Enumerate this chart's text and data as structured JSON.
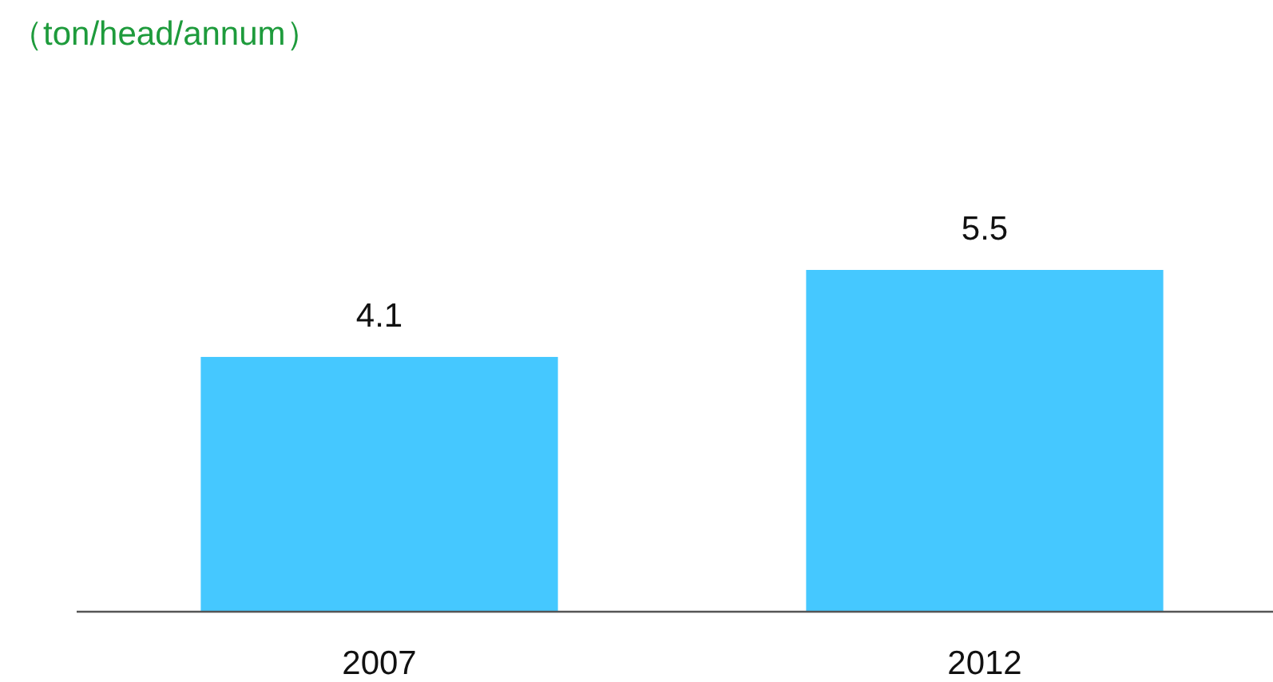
{
  "chart_data": {
    "type": "bar",
    "annotations": [
      "（ton/head/annum）"
    ],
    "categories": [
      "2007",
      "2012"
    ],
    "values": [
      4.1,
      5.5
    ],
    "color": "#45c8ff",
    "data_labels": true
  }
}
